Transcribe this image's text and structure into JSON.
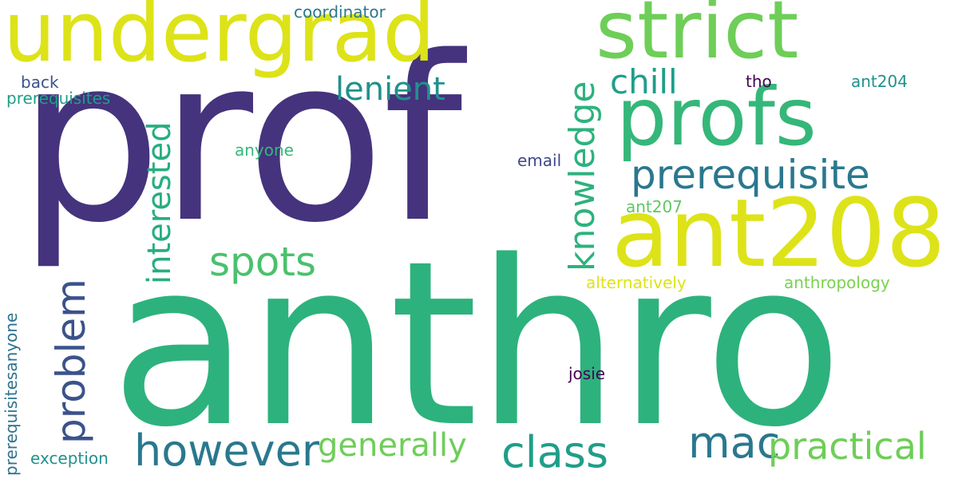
{
  "word_cloud": {
    "words": {
      "prof": "prof",
      "anthro": "anthro",
      "undergrad": "undergrad",
      "strict": "strict",
      "profs": "profs",
      "ant208": "ant208",
      "prerequisite": "prerequisite",
      "lenient": "lenient",
      "chill": "chill",
      "spots": "spots",
      "interested": "interested",
      "knowledge": "knowledge",
      "problem": "problem",
      "however": "however",
      "generally": "generally",
      "class": "class",
      "mac": "mac",
      "practical": "practical",
      "coordinator": "coordinator",
      "back": "back",
      "prerequisites": "prerequisites",
      "anyone": "anyone",
      "tho": "tho",
      "ant204": "ant204",
      "email": "email",
      "ant207": "ant207",
      "alternatively": "alternatively",
      "anthropology": "anthropology",
      "josie": "josie",
      "exception": "exception",
      "prerequisitesanyone": "prerequisitesanyone"
    },
    "palette": [
      "#440154",
      "#45337d",
      "#3b528b",
      "#2a788e",
      "#21918c",
      "#2db27d",
      "#6ece58",
      "#dde318"
    ]
  }
}
